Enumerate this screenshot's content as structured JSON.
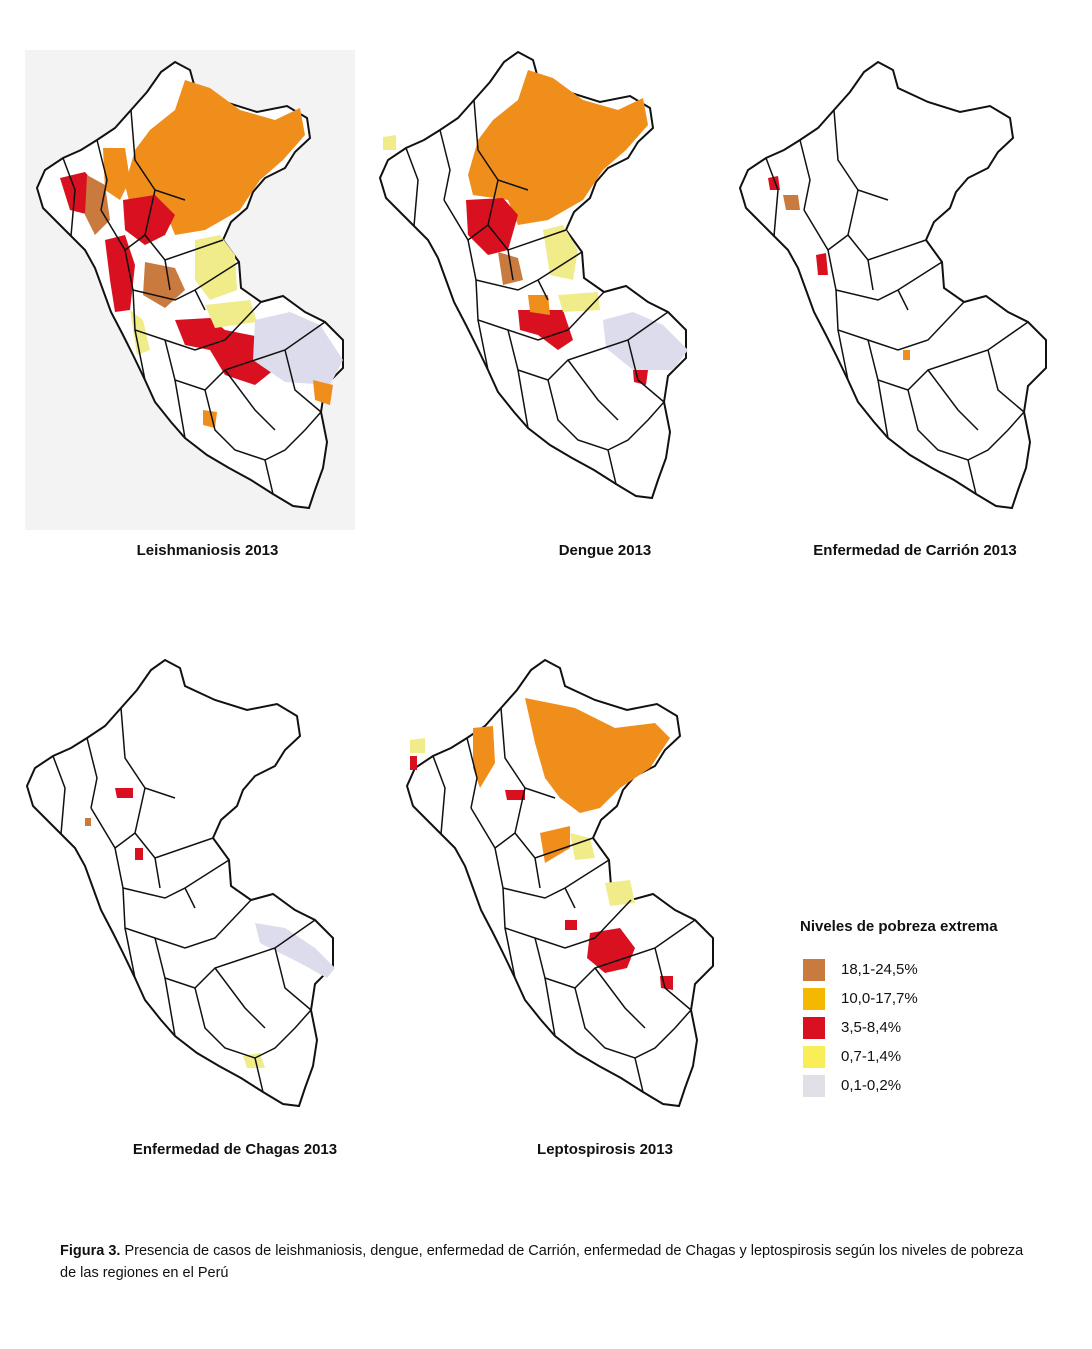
{
  "colors": {
    "c18": "#c97a3f",
    "c10": "#f08e1c",
    "c35": "#d9101f",
    "c07": "#f1ec8a",
    "c01": "#dcdcec",
    "border": "#111111"
  },
  "maps": [
    {
      "title": "Leishmaniosis 2013",
      "icon": "peru-map-icon"
    },
    {
      "title": "Dengue 2013",
      "icon": "peru-map-icon"
    },
    {
      "title": "Enfermedad de Carrión 2013",
      "icon": "peru-map-icon"
    },
    {
      "title": "Enfermedad de Chagas 2013",
      "icon": "peru-map-icon"
    },
    {
      "title": "Leptospirosis 2013",
      "icon": "peru-map-icon"
    }
  ],
  "legend": {
    "title": "Niveles de pobreza extrema",
    "items": [
      {
        "label": "18,1-24,5%",
        "color": "#c97a3f"
      },
      {
        "label": "10,0-17,7%",
        "color": "#f5b800"
      },
      {
        "label": "3,5-8,4%",
        "color": "#d9101f"
      },
      {
        "label": "0,7-1,4%",
        "color": "#f8ee58"
      },
      {
        "label": "0,1-0,2%",
        "color": "#e0e0e6"
      }
    ]
  },
  "caption": {
    "label": "Figura 3.",
    "text": " Presencia de casos de leishmaniosis, dengue, enfermedad de Carrión, enfermedad de Chagas y leptospirosis según los niveles de pobreza de las regiones en el Perú"
  }
}
